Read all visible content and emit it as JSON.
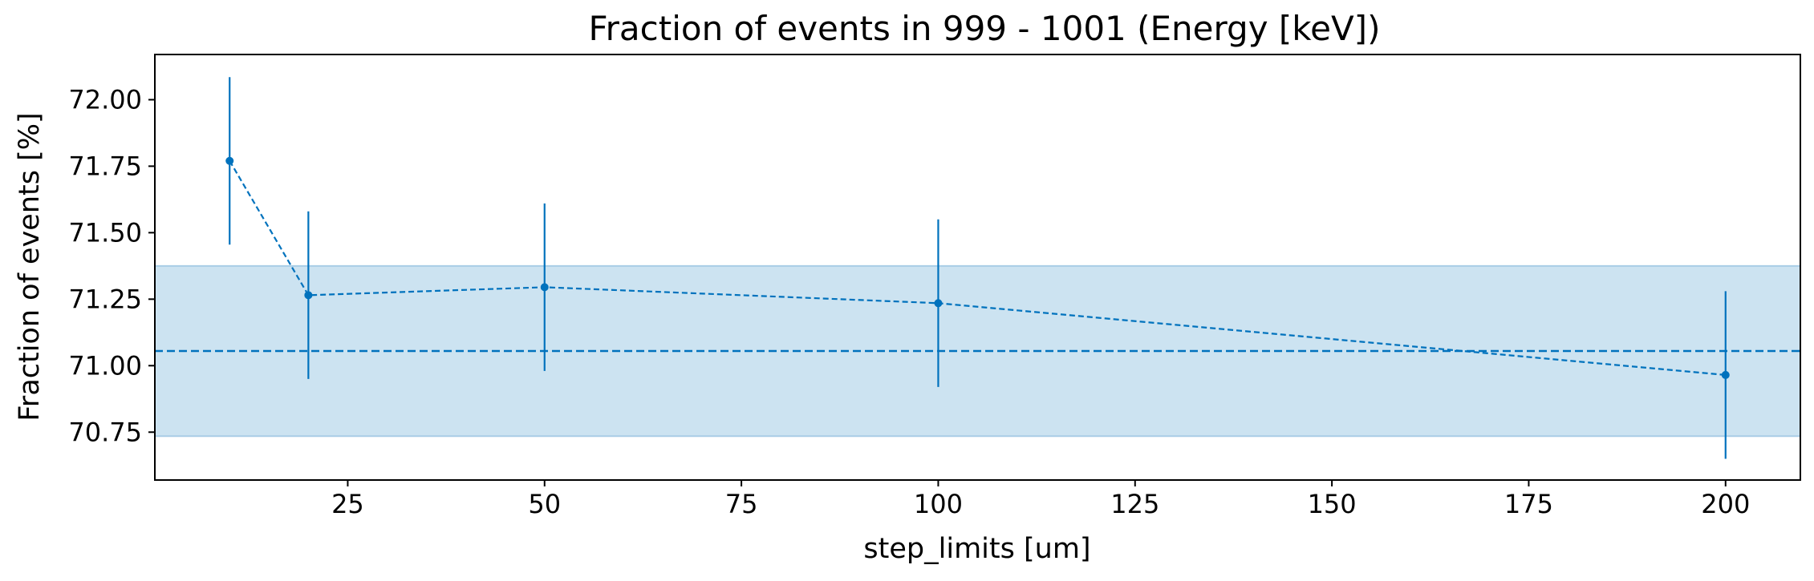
{
  "chart_data": {
    "type": "line",
    "title": "Fraction of events in 999 - 1001 (Energy [keV])",
    "xlabel": "step_limits [um]",
    "ylabel": "Fraction of events [%]",
    "xlim": [
      0.5,
      209.5
    ],
    "ylim": [
      70.57,
      72.17
    ],
    "xticks": [
      25,
      50,
      75,
      100,
      125,
      150,
      175,
      200
    ],
    "yticks": [
      70.75,
      71.0,
      71.25,
      71.5,
      71.75,
      72.0
    ],
    "grid": false,
    "series": [
      {
        "x": [
          10,
          20,
          50,
          100,
          200
        ],
        "y": [
          71.77,
          71.265,
          71.295,
          71.235,
          70.965
        ],
        "yerr": [
          0.315,
          0.315,
          0.315,
          0.315,
          0.315
        ],
        "color": "#0072bd",
        "linestyle": "dashed",
        "marker": "circle"
      }
    ],
    "reference_line": {
      "y": 71.055,
      "color": "#0072bd",
      "linestyle": "dashed"
    },
    "band": {
      "ymin": 70.735,
      "ymax": 71.375,
      "color": "#cce3f1"
    }
  }
}
